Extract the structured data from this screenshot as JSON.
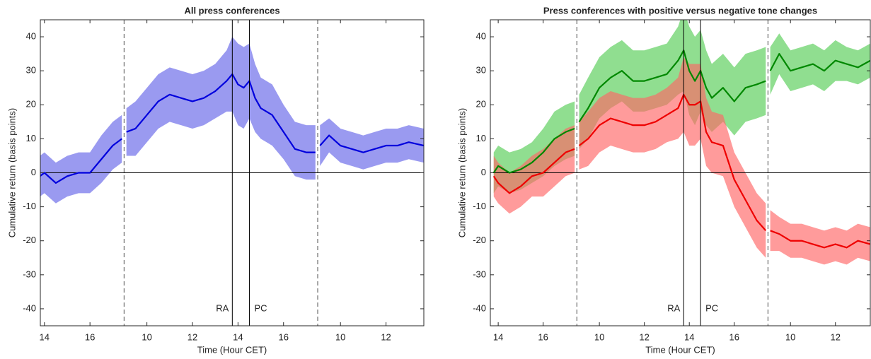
{
  "chart_data": [
    {
      "type": "line",
      "title": "All press conferences",
      "xlabel": "Time (Hour CET)",
      "ylabel": "Cumulative return (basis points)",
      "x": [
        -0.2,
        0,
        0.5,
        1,
        1.5,
        2,
        2.5,
        3,
        3.4,
        3.5,
        3.6,
        4,
        4.5,
        5,
        5.5,
        6,
        6.5,
        7,
        7.5,
        8,
        8.25,
        8.5,
        8.75,
        9,
        9.25,
        9.5,
        10,
        10.5,
        11,
        11.5,
        11.9,
        12,
        12.1,
        12.5,
        13,
        13.5,
        14,
        14.5,
        15,
        15.5,
        16,
        16.66
      ],
      "series": [
        {
          "color": "#0000dd",
          "band_color": "#9a9af0",
          "values": [
            -1,
            0,
            -3,
            -1,
            0,
            0,
            4,
            8,
            10,
            null,
            12,
            13,
            17,
            21,
            23,
            22,
            21,
            22,
            24,
            27,
            29,
            26,
            25,
            27,
            22,
            19,
            17,
            12,
            7,
            6,
            6,
            null,
            8,
            11,
            8,
            7,
            6,
            7,
            8,
            8,
            9,
            8
          ],
          "errors": [
            6,
            6,
            6,
            6,
            6,
            6,
            7,
            7,
            7,
            null,
            7,
            8,
            8,
            8,
            8,
            8,
            8,
            8,
            8,
            9,
            11,
            12,
            12,
            11,
            10,
            9,
            9,
            8,
            8,
            8,
            8,
            null,
            6,
            5,
            5,
            5,
            5,
            5,
            5,
            5,
            5,
            5
          ]
        }
      ],
      "xlim": [
        -0.18,
        16.66
      ],
      "ylim": [
        -45,
        45
      ],
      "xticks": [
        {
          "value": 0,
          "label": "14"
        },
        {
          "value": 2,
          "label": "16"
        },
        {
          "value": 4.5,
          "label": "10"
        },
        {
          "value": 6.5,
          "label": "12"
        },
        {
          "value": 8.5,
          "label": "14"
        },
        {
          "value": 10.5,
          "label": "16"
        },
        {
          "value": 13,
          "label": "10"
        },
        {
          "value": 15,
          "label": "12"
        }
      ],
      "yticks": [
        -40,
        -30,
        -20,
        -10,
        0,
        10,
        20,
        30,
        40
      ],
      "breaks": [
        3.5,
        12
      ],
      "events": [
        {
          "x": 8.25,
          "label": "RA"
        },
        {
          "x": 9,
          "label": "PC"
        }
      ]
    },
    {
      "type": "line",
      "title": "Press conferences with positive versus negative tone changes",
      "xlabel": "Time (Hour CET)",
      "ylabel": "Cumulative return (basis points)",
      "x": [
        -0.2,
        0,
        0.5,
        1,
        1.5,
        2,
        2.5,
        3,
        3.4,
        3.5,
        3.6,
        4,
        4.5,
        5,
        5.5,
        6,
        6.5,
        7,
        7.5,
        8,
        8.25,
        8.5,
        8.75,
        9,
        9.25,
        9.5,
        10,
        10.5,
        11,
        11.5,
        11.9,
        12,
        12.1,
        12.5,
        13,
        13.5,
        14,
        14.5,
        15,
        15.5,
        16,
        16.55
      ],
      "series": [
        {
          "color": "#008800",
          "band_color": "#55cc55",
          "values": [
            0,
            2,
            0,
            1,
            3,
            6,
            10,
            12,
            13,
            null,
            15,
            19,
            25,
            28,
            30,
            27,
            27,
            28,
            29,
            33,
            36,
            30,
            27,
            30,
            25,
            22,
            25,
            21,
            25,
            26,
            27,
            null,
            30,
            35,
            30,
            31,
            32,
            30,
            33,
            32,
            31,
            33
          ],
          "errors": [
            6,
            6,
            6,
            6,
            6,
            7,
            8,
            8,
            8,
            null,
            8,
            9,
            9,
            9,
            9,
            9,
            9,
            9,
            9,
            10,
            12,
            13,
            13,
            12,
            11,
            10,
            10,
            10,
            10,
            10,
            10,
            null,
            7,
            6,
            6,
            6,
            6,
            6,
            6,
            5,
            5,
            5
          ]
        },
        {
          "color": "#ee0000",
          "band_color": "#ff6666",
          "values": [
            -1,
            -3,
            -6,
            -4,
            -1,
            0,
            3,
            6,
            7,
            null,
            8,
            10,
            14,
            16,
            15,
            14,
            14,
            15,
            17,
            19,
            23,
            20,
            20,
            21,
            12,
            9,
            8,
            -2,
            -8,
            -14,
            -17,
            null,
            -17,
            -18,
            -20,
            -20,
            -21,
            -22,
            -21,
            -22,
            -20,
            -21
          ],
          "errors": [
            6,
            6,
            6,
            6,
            6,
            7,
            7,
            7,
            7,
            null,
            7,
            8,
            8,
            8,
            8,
            8,
            8,
            8,
            8,
            9,
            11,
            12,
            12,
            11,
            10,
            9,
            9,
            8,
            8,
            8,
            8,
            null,
            6,
            5,
            5,
            5,
            5,
            5,
            5,
            5,
            5,
            5
          ]
        }
      ],
      "xlim": [
        -0.35,
        16.55
      ],
      "ylim": [
        -45,
        45
      ],
      "xticks": [
        {
          "value": 0,
          "label": "14"
        },
        {
          "value": 2,
          "label": "16"
        },
        {
          "value": 4.5,
          "label": "10"
        },
        {
          "value": 6.5,
          "label": "12"
        },
        {
          "value": 8.5,
          "label": "14"
        },
        {
          "value": 10.5,
          "label": "16"
        },
        {
          "value": 13,
          "label": "10"
        },
        {
          "value": 15,
          "label": "12"
        }
      ],
      "yticks": [
        -40,
        -30,
        -20,
        -10,
        0,
        10,
        20,
        30,
        40
      ],
      "breaks": [
        3.5,
        12
      ],
      "events": [
        {
          "x": 8.25,
          "label": "RA"
        },
        {
          "x": 9,
          "label": "PC"
        }
      ]
    }
  ]
}
